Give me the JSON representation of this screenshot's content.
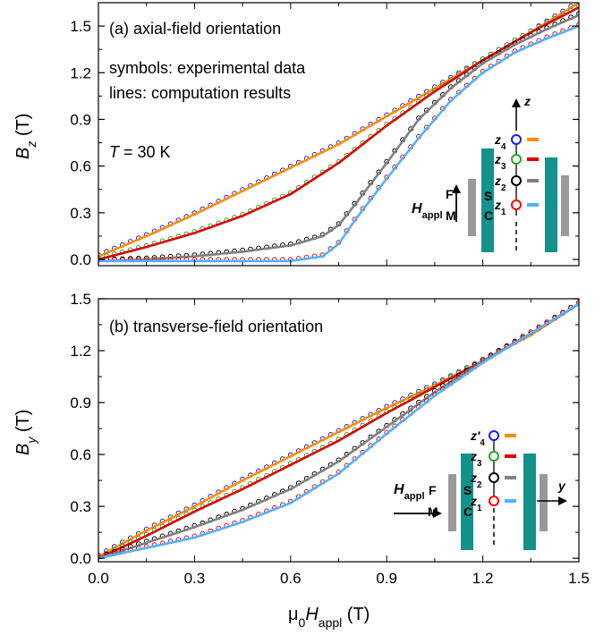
{
  "figure": {
    "xlabel": "μ0Happl (T)",
    "x_ticks": [
      "0.0",
      "0.3",
      "0.6",
      "0.9",
      "1.2",
      "1.5"
    ]
  },
  "chart_data": [
    {
      "type": "line",
      "panel_label": "(a) axial-field orientation",
      "ylabel": "Bz (T)",
      "xlim": [
        0,
        1.5
      ],
      "ylim": [
        -0.04,
        1.65
      ],
      "y_ticks": [
        0.0,
        0.3,
        0.6,
        0.9,
        1.2,
        1.5
      ],
      "annotations": [
        "symbols: experimental data",
        "lines: computation results",
        "T = 30 K"
      ],
      "series": [
        {
          "name": "z4",
          "symbol_color": "#1a1aff",
          "line_color": "#ff8c00",
          "x": [
            0,
            0.15,
            0.3,
            0.45,
            0.6,
            0.75,
            0.9,
            1.05,
            1.2,
            1.35,
            1.5
          ],
          "y": [
            0.02,
            0.15,
            0.29,
            0.44,
            0.59,
            0.74,
            0.92,
            1.1,
            1.28,
            1.46,
            1.65
          ]
        },
        {
          "name": "z3",
          "symbol_color": "#22aa22",
          "line_color": "#e00000",
          "x": [
            0,
            0.15,
            0.3,
            0.45,
            0.6,
            0.75,
            0.9,
            1.05,
            1.2,
            1.35,
            1.5
          ],
          "y": [
            0.0,
            0.08,
            0.17,
            0.28,
            0.42,
            0.62,
            0.86,
            1.08,
            1.28,
            1.46,
            1.62
          ]
        },
        {
          "name": "z2",
          "symbol_color": "#000000",
          "line_color": "#808080",
          "x": [
            0,
            0.15,
            0.3,
            0.45,
            0.6,
            0.7,
            0.75,
            0.8,
            0.9,
            1.0,
            1.1,
            1.2,
            1.3,
            1.4,
            1.5
          ],
          "y": [
            -0.01,
            0.0,
            0.02,
            0.05,
            0.09,
            0.15,
            0.22,
            0.35,
            0.62,
            0.9,
            1.1,
            1.26,
            1.38,
            1.48,
            1.57
          ]
        },
        {
          "name": "z1",
          "symbol_color": "#ff0000",
          "line_color": "#4fb3ff",
          "x": [
            0,
            0.3,
            0.6,
            0.7,
            0.75,
            0.8,
            0.9,
            1.0,
            1.1,
            1.2,
            1.3,
            1.4,
            1.5
          ],
          "y": [
            -0.01,
            -0.01,
            -0.01,
            0.02,
            0.1,
            0.25,
            0.52,
            0.78,
            1.02,
            1.2,
            1.33,
            1.42,
            1.5
          ]
        }
      ],
      "inset": {
        "field_label": "Happl",
        "axis_label": "z",
        "sample_labels": [
          "F",
          "S",
          "M",
          "C"
        ],
        "probes": [
          "z4",
          "z3",
          "z2",
          "z1"
        ]
      }
    },
    {
      "type": "line",
      "panel_label": "(b) transverse-field orientation",
      "ylabel": "By (T)",
      "xlim": [
        0,
        1.5
      ],
      "ylim": [
        -0.02,
        1.5
      ],
      "y_ticks": [
        0.0,
        0.3,
        0.6,
        0.9,
        1.2,
        1.5
      ],
      "series": [
        {
          "name": "z′4",
          "symbol_color": "#1a1aff",
          "line_color": "#ff8c00",
          "x": [
            0,
            0.15,
            0.3,
            0.45,
            0.6,
            0.75,
            0.9,
            1.05,
            1.2,
            1.35,
            1.5
          ],
          "y": [
            0.01,
            0.16,
            0.3,
            0.45,
            0.59,
            0.73,
            0.87,
            1.0,
            1.14,
            1.29,
            1.47
          ]
        },
        {
          "name": "z3",
          "symbol_color": "#22aa22",
          "line_color": "#e00000",
          "x": [
            0,
            0.15,
            0.3,
            0.45,
            0.6,
            0.75,
            0.9,
            1.05,
            1.2,
            1.35,
            1.5
          ],
          "y": [
            0.0,
            0.13,
            0.27,
            0.4,
            0.54,
            0.68,
            0.84,
            0.99,
            1.14,
            1.3,
            1.47
          ]
        },
        {
          "name": "z2",
          "symbol_color": "#000000",
          "line_color": "#808080",
          "x": [
            0,
            0.15,
            0.3,
            0.45,
            0.6,
            0.75,
            0.9,
            1.05,
            1.2,
            1.35,
            1.5
          ],
          "y": [
            0.0,
            0.09,
            0.18,
            0.28,
            0.4,
            0.56,
            0.76,
            0.96,
            1.14,
            1.3,
            1.47
          ]
        },
        {
          "name": "z1",
          "symbol_color": "#ff0000",
          "line_color": "#4fb3ff",
          "x": [
            0,
            0.15,
            0.3,
            0.45,
            0.6,
            0.75,
            0.9,
            1.05,
            1.2,
            1.35,
            1.5
          ],
          "y": [
            0.0,
            0.06,
            0.12,
            0.21,
            0.32,
            0.49,
            0.72,
            0.94,
            1.13,
            1.3,
            1.47
          ]
        }
      ],
      "inset": {
        "field_label": "Happl",
        "axis_label": "y",
        "sample_labels": [
          "F",
          "S",
          "M",
          "C"
        ],
        "probes": [
          "z′4",
          "z3",
          "z2",
          "z1"
        ]
      }
    }
  ]
}
